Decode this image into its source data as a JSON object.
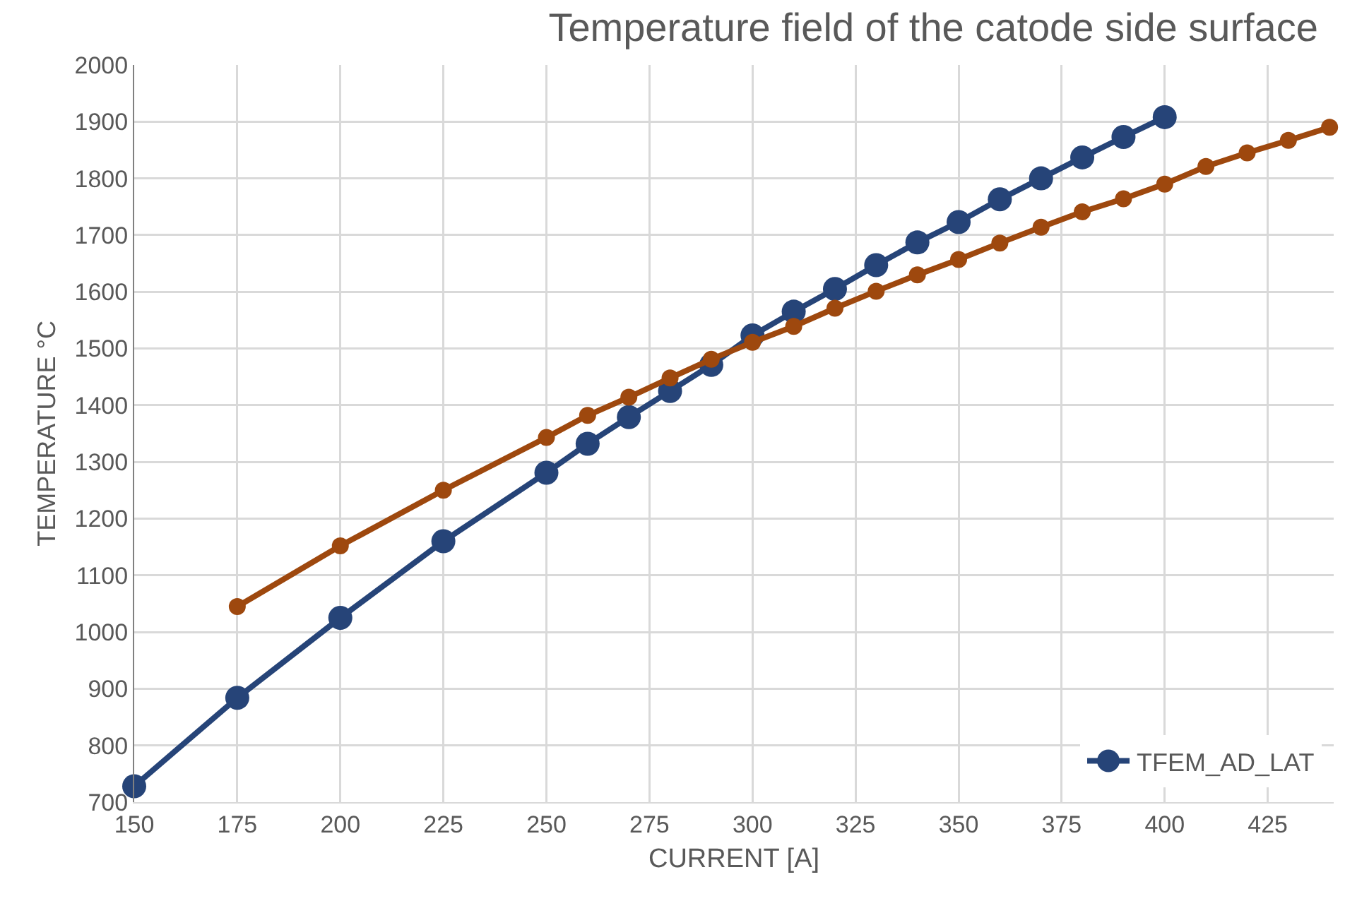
{
  "chart_data": {
    "type": "line",
    "title": "Temperature field of the catode side surface",
    "xlabel": "CURRENT [A]",
    "ylabel": "TEMPERATURE °C",
    "xlim": [
      150,
      441
    ],
    "xticks": [
      150,
      175,
      200,
      225,
      250,
      275,
      300,
      325,
      350,
      375,
      400,
      425
    ],
    "ylim": [
      700,
      2000
    ],
    "yticks": [
      700,
      800,
      900,
      1000,
      1100,
      1200,
      1300,
      1400,
      1500,
      1600,
      1700,
      1800,
      1900,
      2000
    ],
    "grid": true,
    "legend": "bottom right",
    "marker": "circle",
    "line_style": "solid",
    "series": [
      {
        "name": "TFEM_AD_LAT",
        "color": "#264478",
        "x": [
          150,
          175,
          200,
          225,
          250,
          260,
          270,
          280,
          290,
          300,
          310,
          320,
          330,
          340,
          350,
          360,
          370,
          380,
          390,
          400
        ],
        "values": [
          728,
          884,
          1025,
          1160,
          1281,
          1332,
          1379,
          1425,
          1471,
          1523,
          1565,
          1605,
          1647,
          1687,
          1723,
          1763,
          1800,
          1837,
          1873,
          1908
        ]
      },
      {
        "color": "#9e480e",
        "x": [
          175,
          200,
          225,
          250,
          260,
          270,
          280,
          290,
          300,
          310,
          320,
          330,
          340,
          350,
          360,
          370,
          380,
          390,
          400,
          410,
          420,
          430,
          440
        ],
        "values": [
          1045,
          1152,
          1250,
          1343,
          1382,
          1414,
          1448,
          1481,
          1511,
          1539,
          1571,
          1601,
          1630,
          1657,
          1686,
          1714,
          1741,
          1764,
          1790,
          1821,
          1845,
          1867,
          1890
        ]
      }
    ]
  }
}
